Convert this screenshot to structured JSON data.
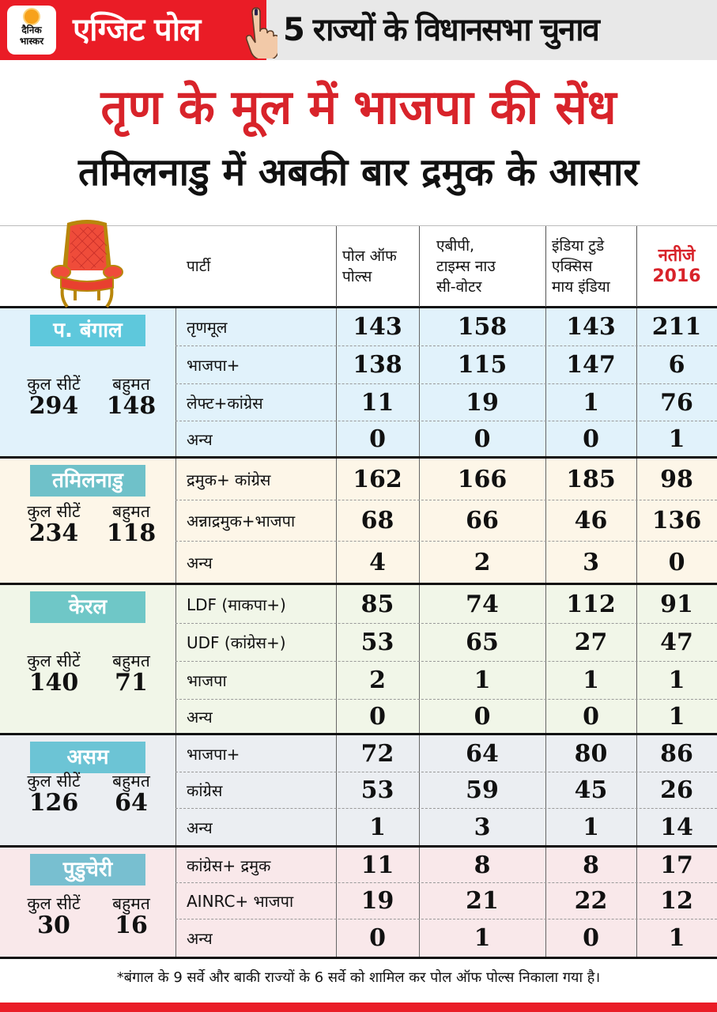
{
  "brand": {
    "logo_line1": "दैनिक",
    "logo_line2": "भास्कर",
    "accent": "#ea1c26"
  },
  "banner": {
    "label": "एग्जिट पोल",
    "title": "5 राज्यों के विधानसभा चुनाव"
  },
  "headline": "तृण के मूल में भाजपा की सेंध",
  "subheadline": "तमिलनाडु में अबकी बार द्रमुक के आसार",
  "table": {
    "headers": {
      "party": "पार्टी",
      "poll_of_polls": [
        "पोल ऑफ",
        "पोल्स"
      ],
      "abp": [
        "एबीपी,",
        "टाइम्स नाउ",
        "सी-वोटर"
      ],
      "india_today": [
        "इंडिया टुडे",
        "एक्सिस",
        "माय इंडिया"
      ],
      "results": [
        "नतीजे",
        "2016"
      ]
    },
    "total_seats_label": "कुल सीटें",
    "majority_label": "बहुमत",
    "states": [
      {
        "name": "प. बंगाल",
        "badge_color": "#5ec8dc",
        "bg": "#e1f2fb",
        "total_seats": "294",
        "majority": "148",
        "rows": [
          {
            "party": "तृणमूल",
            "values": [
              "143",
              "158",
              "143",
              "211"
            ]
          },
          {
            "party": "भाजपा+",
            "values": [
              "138",
              "115",
              "147",
              "6"
            ]
          },
          {
            "party": "लेफ्ट+कांग्रेस",
            "values": [
              "11",
              "19",
              "1",
              "76"
            ]
          },
          {
            "party": "अन्य",
            "values": [
              "0",
              "0",
              "0",
              "1"
            ]
          }
        ]
      },
      {
        "name": "तमिलनाडु",
        "badge_color": "#6fc1c9",
        "bg": "#fdf6e8",
        "total_seats": "234",
        "majority": "118",
        "rows": [
          {
            "party": "द्रमुक+ कांग्रेस",
            "values": [
              "162",
              "166",
              "185",
              "98"
            ]
          },
          {
            "party": "अन्नाद्रमुक+भाजपा",
            "values": [
              "68",
              "66",
              "46",
              "136"
            ]
          },
          {
            "party": "अन्य",
            "values": [
              "4",
              "2",
              "3",
              "0"
            ]
          }
        ]
      },
      {
        "name": "केरल",
        "badge_color": "#6fc7c7",
        "bg": "#f1f6e8",
        "total_seats": "140",
        "majority": "71",
        "rows": [
          {
            "party": "LDF (माकपा+)",
            "values": [
              "85",
              "74",
              "112",
              "91"
            ]
          },
          {
            "party": "UDF (कांग्रेस+)",
            "values": [
              "53",
              "65",
              "27",
              "47"
            ]
          },
          {
            "party": "भाजपा",
            "values": [
              "2",
              "1",
              "1",
              "1"
            ]
          },
          {
            "party": "अन्य",
            "values": [
              "0",
              "0",
              "0",
              "1"
            ]
          }
        ]
      },
      {
        "name": "असम",
        "badge_color": "#6cc4d5",
        "bg": "#ebeef2",
        "total_seats": "126",
        "majority": "64",
        "rows": [
          {
            "party": "भाजपा+",
            "values": [
              "72",
              "64",
              "80",
              "86"
            ]
          },
          {
            "party": "कांग्रेस",
            "values": [
              "53",
              "59",
              "45",
              "26"
            ]
          },
          {
            "party": "अन्य",
            "values": [
              "1",
              "3",
              "1",
              "14"
            ]
          }
        ]
      },
      {
        "name": "पुडुचेरी",
        "badge_color": "#78bfd0",
        "bg": "#f9e8ea",
        "total_seats": "30",
        "majority": "16",
        "rows": [
          {
            "party": "कांग्रेस+ द्रमुक",
            "values": [
              "11",
              "8",
              "8",
              "17"
            ]
          },
          {
            "party": "AINRC+ भाजपा",
            "values": [
              "19",
              "21",
              "22",
              "12"
            ]
          },
          {
            "party": "अन्य",
            "values": [
              "0",
              "1",
              "0",
              "1"
            ]
          }
        ]
      }
    ]
  },
  "footnote": "*बंगाल के 9 सर्वे और बाकी राज्यों के 6 सर्वे को शामिल कर पोल ऑफ पोल्स निकाला गया है।"
}
